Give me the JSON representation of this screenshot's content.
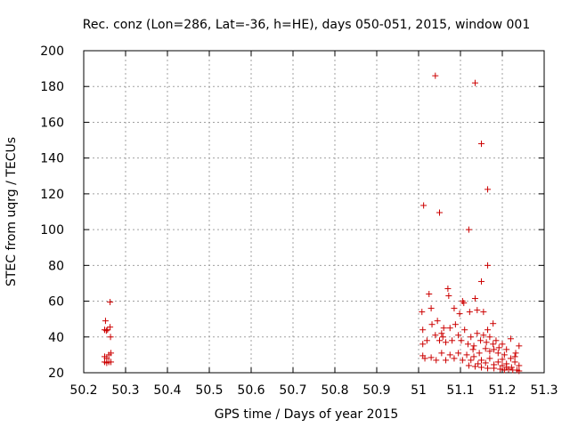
{
  "chart_data": {
    "type": "scatter",
    "title": "Rec. conz (Lon=286, Lat=-36, h=HE), days 050-051, 2015, window 001",
    "xlabel": "GPS time / Days of year 2015",
    "ylabel": "STEC from uqrg / TECUs",
    "xlim": [
      50.2,
      51.3
    ],
    "ylim": [
      20,
      200
    ],
    "xticks": [
      "50.2",
      "50.3",
      "50.4",
      "50.5",
      "50.6",
      "50.7",
      "50.8",
      "50.9",
      "51",
      "51.1",
      "51.2",
      "51.3"
    ],
    "yticks": [
      "20",
      "40",
      "60",
      "80",
      "100",
      "120",
      "140",
      "160",
      "180",
      "200"
    ],
    "grid": true,
    "marker": "+",
    "color": "#cc0000",
    "series": [
      {
        "points": [
          [
            50.252,
            49
          ],
          [
            50.25,
            44
          ],
          [
            50.254,
            43.5
          ],
          [
            50.257,
            44
          ],
          [
            50.263,
            59.5
          ],
          [
            50.263,
            45.5
          ],
          [
            50.264,
            40
          ],
          [
            50.25,
            29
          ],
          [
            50.255,
            28
          ],
          [
            50.26,
            30
          ],
          [
            50.265,
            31
          ],
          [
            50.25,
            26
          ],
          [
            50.255,
            25.5
          ],
          [
            50.26,
            26
          ],
          [
            50.265,
            26
          ],
          [
            51.012,
            113.5
          ],
          [
            51.04,
            186
          ],
          [
            51.05,
            109.5
          ],
          [
            51.12,
            100
          ],
          [
            51.135,
            182
          ],
          [
            51.15,
            148
          ],
          [
            51.165,
            122.5
          ],
          [
            51.165,
            80
          ],
          [
            51.15,
            71
          ],
          [
            51.008,
            54
          ],
          [
            51.025,
            64
          ],
          [
            51.03,
            56
          ],
          [
            51.045,
            49
          ],
          [
            51.055,
            42
          ],
          [
            51.06,
            45
          ],
          [
            51.07,
            67
          ],
          [
            51.072,
            63
          ],
          [
            51.085,
            56
          ],
          [
            51.098,
            53
          ],
          [
            51.105,
            60
          ],
          [
            51.108,
            59
          ],
          [
            51.122,
            54
          ],
          [
            51.135,
            61.5
          ],
          [
            51.14,
            55
          ],
          [
            51.155,
            54
          ],
          [
            51.165,
            44
          ],
          [
            51.178,
            47.5
          ],
          [
            51.01,
            44
          ],
          [
            51.01,
            36
          ],
          [
            51.02,
            38
          ],
          [
            51.032,
            47
          ],
          [
            51.04,
            41
          ],
          [
            51.05,
            38
          ],
          [
            51.058,
            40
          ],
          [
            51.065,
            37
          ],
          [
            51.075,
            45
          ],
          [
            51.08,
            38
          ],
          [
            51.088,
            47
          ],
          [
            51.095,
            41
          ],
          [
            51.102,
            38
          ],
          [
            51.11,
            44
          ],
          [
            51.118,
            36
          ],
          [
            51.125,
            40
          ],
          [
            51.132,
            35
          ],
          [
            51.14,
            42
          ],
          [
            51.148,
            38
          ],
          [
            51.155,
            41
          ],
          [
            51.162,
            37
          ],
          [
            51.17,
            40
          ],
          [
            51.178,
            36
          ],
          [
            51.185,
            38
          ],
          [
            51.192,
            34
          ],
          [
            51.2,
            36
          ],
          [
            51.21,
            33
          ],
          [
            51.22,
            39
          ],
          [
            51.232,
            31
          ],
          [
            51.24,
            35
          ],
          [
            51.01,
            29.5
          ],
          [
            51.015,
            28
          ],
          [
            51.03,
            28.5
          ],
          [
            51.042,
            27
          ],
          [
            51.055,
            31
          ],
          [
            51.065,
            27
          ],
          [
            51.075,
            30
          ],
          [
            51.085,
            28
          ],
          [
            51.095,
            31
          ],
          [
            51.105,
            27
          ],
          [
            51.115,
            30
          ],
          [
            51.125,
            27
          ],
          [
            51.132,
            29
          ],
          [
            51.142,
            25
          ],
          [
            51.15,
            27
          ],
          [
            51.16,
            25.5
          ],
          [
            51.17,
            28
          ],
          [
            51.18,
            24.5
          ],
          [
            51.19,
            26
          ],
          [
            51.2,
            24
          ],
          [
            51.21,
            25
          ],
          [
            51.222,
            23
          ],
          [
            51.23,
            26
          ],
          [
            51.24,
            24
          ],
          [
            51.12,
            24
          ],
          [
            51.135,
            23.5
          ],
          [
            51.15,
            23
          ],
          [
            51.165,
            22.5
          ],
          [
            51.18,
            22.5
          ],
          [
            51.195,
            22
          ],
          [
            51.205,
            21.5
          ],
          [
            51.215,
            22
          ],
          [
            51.225,
            21.5
          ],
          [
            51.235,
            21.5
          ],
          [
            51.24,
            21
          ],
          [
            51.21,
            23
          ],
          [
            51.2,
            27.5
          ],
          [
            51.19,
            31
          ],
          [
            51.18,
            33
          ],
          [
            51.17,
            32
          ],
          [
            51.16,
            33.5
          ],
          [
            51.145,
            31
          ],
          [
            51.13,
            33
          ],
          [
            51.22,
            28
          ],
          [
            51.23,
            29
          ],
          [
            51.205,
            30
          ]
        ]
      }
    ]
  }
}
